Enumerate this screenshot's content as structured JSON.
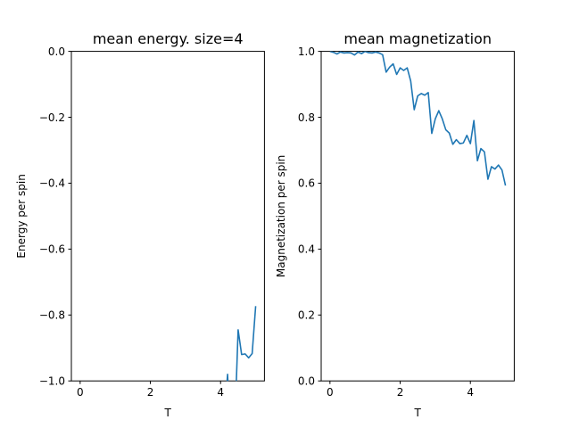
{
  "chart_data": [
    {
      "type": "line",
      "title": "mean energy. size=4",
      "xlabel": "T",
      "ylabel": "Energy per spin",
      "xlim": [
        -0.25,
        5.25
      ],
      "ylim": [
        -1.0,
        0.0
      ],
      "xticks": [
        0,
        2,
        4
      ],
      "yticks": [
        0.0,
        -0.2,
        -0.4,
        -0.6,
        -0.8,
        -1.0
      ],
      "xtick_labels": [
        "0",
        "2",
        "4"
      ],
      "ytick_labels": [
        "0.0",
        "−0.2",
        "−0.4",
        "−0.6",
        "−0.8",
        "−1.0"
      ],
      "color": "#1f77b4",
      "x": [
        4.15,
        4.2,
        4.25,
        4.3,
        4.35,
        4.4,
        4.45,
        4.5,
        4.6,
        4.7,
        4.8,
        4.9,
        5.0
      ],
      "y": [
        -1.05,
        -0.98,
        -1.1,
        -1.2,
        -1.15,
        -1.08,
        -1.0,
        -0.845,
        -0.92,
        -0.918,
        -0.93,
        -0.917,
        -0.773
      ]
    },
    {
      "type": "line",
      "title": "mean magnetization",
      "xlabel": "T",
      "ylabel": "Magnetization per spin",
      "xlim": [
        -0.25,
        5.25
      ],
      "ylim": [
        0.0,
        1.0
      ],
      "xticks": [
        0,
        2,
        4
      ],
      "yticks": [
        0.0,
        0.2,
        0.4,
        0.6,
        0.8,
        1.0
      ],
      "xtick_labels": [
        "0",
        "2",
        "4"
      ],
      "ytick_labels": [
        "0.0",
        "0.2",
        "0.4",
        "0.6",
        "0.8",
        "1.0"
      ],
      "color": "#1f77b4",
      "x": [
        0.0,
        0.1,
        0.2,
        0.3,
        0.4,
        0.5,
        0.6,
        0.7,
        0.8,
        0.9,
        1.0,
        1.1,
        1.2,
        1.3,
        1.4,
        1.5,
        1.6,
        1.7,
        1.8,
        1.9,
        2.0,
        2.1,
        2.2,
        2.3,
        2.4,
        2.5,
        2.6,
        2.7,
        2.8,
        2.9,
        3.0,
        3.1,
        3.2,
        3.3,
        3.4,
        3.5,
        3.6,
        3.7,
        3.8,
        3.9,
        4.0,
        4.1,
        4.2,
        4.3,
        4.4,
        4.5,
        4.6,
        4.7,
        4.8,
        4.9,
        5.0
      ],
      "y": [
        1.0,
        0.997,
        0.992,
        0.998,
        0.995,
        0.996,
        0.995,
        0.989,
        0.998,
        0.993,
        1.0,
        0.996,
        0.995,
        0.998,
        0.995,
        0.99,
        0.937,
        0.952,
        0.962,
        0.93,
        0.95,
        0.942,
        0.95,
        0.91,
        0.823,
        0.865,
        0.872,
        0.867,
        0.875,
        0.751,
        0.795,
        0.82,
        0.795,
        0.762,
        0.752,
        0.718,
        0.732,
        0.72,
        0.722,
        0.745,
        0.72,
        0.79,
        0.668,
        0.705,
        0.695,
        0.612,
        0.65,
        0.643,
        0.655,
        0.64,
        0.593
      ]
    }
  ]
}
